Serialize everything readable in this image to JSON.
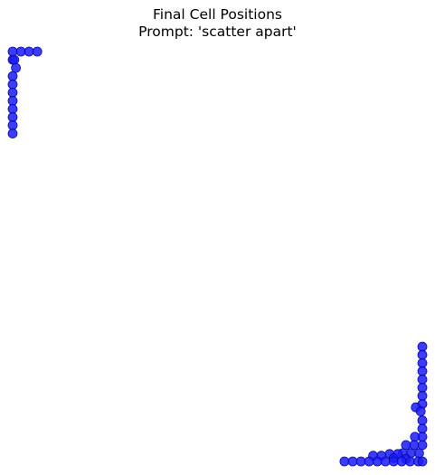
{
  "chart_data": {
    "type": "scatter",
    "title": "Final Cell Positions",
    "subtitle": "Prompt: 'scatter apart'",
    "axes_visible": false,
    "grid": false,
    "xlim": [
      0,
      1
    ],
    "ylim": [
      0,
      1
    ],
    "marker_color": "#1a1aff",
    "marker_edge_color": "#0b0b9e",
    "series": [
      {
        "points": [
          {
            "x": 0.0,
            "y": 1.0
          },
          {
            "x": 0.02,
            "y": 1.0
          },
          {
            "x": 0.04,
            "y": 1.0
          },
          {
            "x": 0.06,
            "y": 1.0
          },
          {
            "x": 0.0,
            "y": 0.98
          },
          {
            "x": 0.004,
            "y": 0.98
          },
          {
            "x": 0.008,
            "y": 0.96
          },
          {
            "x": 0.0,
            "y": 0.94
          },
          {
            "x": 0.0,
            "y": 0.92
          },
          {
            "x": 0.0,
            "y": 0.9
          },
          {
            "x": 0.0,
            "y": 0.88
          },
          {
            "x": 0.0,
            "y": 0.86
          },
          {
            "x": 0.0,
            "y": 0.84
          },
          {
            "x": 0.0,
            "y": 0.82
          },
          {
            "x": 0.0,
            "y": 0.8
          },
          {
            "x": 1.0,
            "y": 0.28
          },
          {
            "x": 1.0,
            "y": 0.26
          },
          {
            "x": 1.0,
            "y": 0.24
          },
          {
            "x": 1.0,
            "y": 0.22
          },
          {
            "x": 1.0,
            "y": 0.2
          },
          {
            "x": 1.0,
            "y": 0.18
          },
          {
            "x": 1.0,
            "y": 0.16
          },
          {
            "x": 1.0,
            "y": 0.14
          },
          {
            "x": 0.984,
            "y": 0.132
          },
          {
            "x": 0.996,
            "y": 0.122
          },
          {
            "x": 1.0,
            "y": 0.1
          },
          {
            "x": 1.0,
            "y": 0.08
          },
          {
            "x": 1.0,
            "y": 0.06
          },
          {
            "x": 1.0,
            "y": 0.04
          },
          {
            "x": 0.982,
            "y": 0.06
          },
          {
            "x": 0.98,
            "y": 0.04
          },
          {
            "x": 0.96,
            "y": 0.04
          },
          {
            "x": 0.992,
            "y": 0.02
          },
          {
            "x": 0.972,
            "y": 0.02
          },
          {
            "x": 0.952,
            "y": 0.02
          },
          {
            "x": 0.94,
            "y": 0.018
          },
          {
            "x": 0.92,
            "y": 0.018
          },
          {
            "x": 0.9,
            "y": 0.014
          },
          {
            "x": 0.88,
            "y": 0.014
          },
          {
            "x": 0.93,
            "y": 0.008
          },
          {
            "x": 0.96,
            "y": 0.006
          },
          {
            "x": 0.81,
            "y": 0.0
          },
          {
            "x": 0.83,
            "y": 0.0
          },
          {
            "x": 0.85,
            "y": 0.0
          },
          {
            "x": 0.87,
            "y": 0.0
          },
          {
            "x": 0.89,
            "y": 0.0
          },
          {
            "x": 0.91,
            "y": 0.0
          },
          {
            "x": 0.93,
            "y": 0.0
          },
          {
            "x": 0.95,
            "y": 0.0
          },
          {
            "x": 0.97,
            "y": 0.0
          },
          {
            "x": 0.99,
            "y": 0.0
          },
          {
            "x": 1.0,
            "y": 0.0
          }
        ]
      }
    ]
  }
}
